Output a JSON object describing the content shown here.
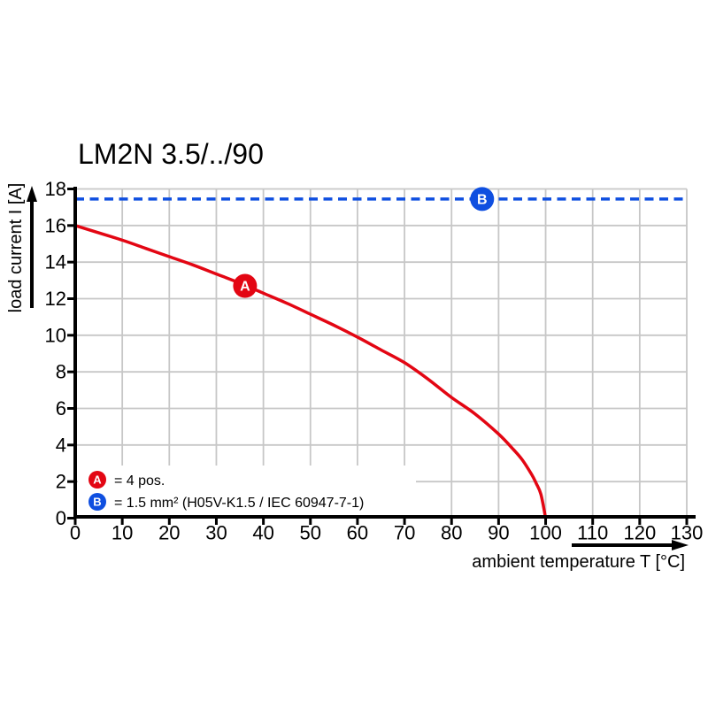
{
  "title": "LM2N 3.5/../90",
  "colors": {
    "red": "#e30613",
    "blue": "#0f4fe0",
    "grid": "#c7c7c7",
    "axis": "#000000"
  },
  "chart_data": {
    "type": "line",
    "title": "LM2N 3.5/../90",
    "xlabel": "ambient temperature T [°C]",
    "ylabel": "load current I [A]",
    "xlim": [
      0,
      130
    ],
    "ylim": [
      0,
      18
    ],
    "x_ticks": [
      0,
      10,
      20,
      30,
      40,
      50,
      60,
      70,
      80,
      90,
      100,
      110,
      120,
      130
    ],
    "y_ticks": [
      0,
      2,
      4,
      6,
      8,
      10,
      12,
      14,
      16,
      18
    ],
    "grid": true,
    "legend_position": "bottom-left-inside",
    "series": [
      {
        "name": "A",
        "label": "= 4 pos.",
        "color": "#e30613",
        "style": "solid",
        "points": [
          [
            0,
            16
          ],
          [
            5,
            15.6
          ],
          [
            10,
            15.2
          ],
          [
            15,
            14.75
          ],
          [
            20,
            14.3
          ],
          [
            25,
            13.85
          ],
          [
            30,
            13.35
          ],
          [
            35,
            12.85
          ],
          [
            40,
            12.3
          ],
          [
            45,
            11.75
          ],
          [
            50,
            11.15
          ],
          [
            55,
            10.55
          ],
          [
            60,
            9.9
          ],
          [
            65,
            9.2
          ],
          [
            70,
            8.5
          ],
          [
            75,
            7.6
          ],
          [
            80,
            6.6
          ],
          [
            85,
            5.7
          ],
          [
            90,
            4.6
          ],
          [
            93,
            3.8
          ],
          [
            95,
            3.2
          ],
          [
            97,
            2.4
          ],
          [
            98,
            1.9
          ],
          [
            99,
            1.3
          ],
          [
            100,
            0
          ]
        ],
        "marker": {
          "letter": "A",
          "t": 36.1,
          "i": 12.7
        }
      },
      {
        "name": "B",
        "label": "= 1.5 mm² (H05V-K1.5 / IEC 60947-7-1)",
        "color": "#0f4fe0",
        "style": "dashed",
        "points": [
          [
            0,
            17.45
          ],
          [
            130,
            17.45
          ]
        ],
        "marker": {
          "letter": "B",
          "t": 86.5,
          "i": 17.45
        }
      }
    ]
  }
}
